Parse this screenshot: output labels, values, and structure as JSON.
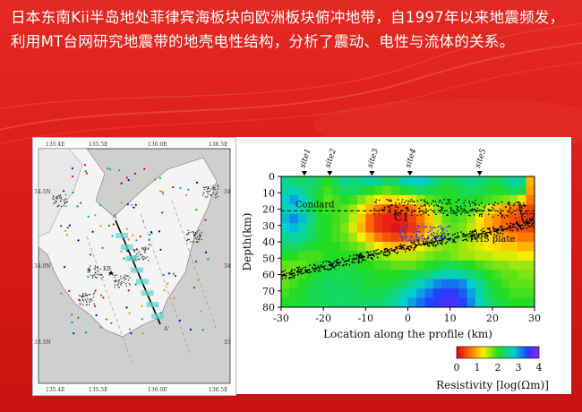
{
  "slide": {
    "text": "日本东南Kii半岛地处菲律宾海板块向欧洲板块俯冲地带，自1997年以来地震频发，利用MT台网研究地震带的地壳电性结构，分析了震动、电性与流体的关系。",
    "colors": {
      "background": "#d81a16",
      "text": "#ffffff"
    }
  },
  "map": {
    "top_ticks": [
      "135.4E",
      "135.5E",
      "136.0E",
      "136.5E"
    ],
    "bottom_ticks": [
      "135.4E",
      "135.5E",
      "136.0E",
      "136.5E"
    ],
    "left_ticks": [
      "34.5N",
      "34.0N",
      "33.5N"
    ],
    "right_ticks": [
      "34",
      "34",
      "33"
    ],
    "profile_start": "A",
    "profile_end": "A'",
    "station_label": "KB"
  },
  "chart_data": {
    "type": "heatmap",
    "xlabel": "Location along the profile (km)",
    "ylabel": "Depth(km)",
    "xlim": [
      -30,
      30
    ],
    "ylim": [
      80,
      0
    ],
    "x_ticks": [
      -30,
      -20,
      -10,
      0,
      10,
      20,
      30
    ],
    "y_ticks": [
      0,
      10,
      20,
      30,
      40,
      50,
      60,
      70,
      80
    ],
    "sites": [
      {
        "name": "site1",
        "x": -24.5
      },
      {
        "name": "site2",
        "x": -18.5
      },
      {
        "name": "site3",
        "x": -8.5
      },
      {
        "name": "site4",
        "x": 0.5
      },
      {
        "name": "site5",
        "x": 17
      }
    ],
    "annotations": [
      {
        "text": "Condard",
        "x": -22,
        "y": 19
      },
      {
        "text": "C1",
        "x": -1.5,
        "y": 27
      },
      {
        "text": "C2",
        "x": 28.5,
        "y": 27
      },
      {
        "text": "PHS plate",
        "x": 20,
        "y": 40
      }
    ],
    "conrad_depth": 21,
    "phs_plate_line": [
      [
        -30,
        61
      ],
      [
        -20,
        55
      ],
      [
        -10,
        49
      ],
      [
        0,
        43
      ],
      [
        10,
        38
      ],
      [
        20,
        34
      ],
      [
        30,
        28
      ]
    ],
    "colorbar": {
      "label": "Resistivity [log(Ωm)]",
      "ticks": [
        0,
        1,
        2,
        3,
        4
      ],
      "range": [
        0,
        4
      ]
    },
    "grid": [
      [
        2.5,
        2.4,
        2.3,
        2.4,
        2.2,
        2.0,
        2.3,
        2.5,
        2.4,
        2.5,
        2.6,
        2.5,
        2.3,
        2.4,
        2.6,
        2.7,
        2.8,
        2.6,
        2.4,
        2.2,
        2.3,
        2.4,
        2.5,
        2.4,
        2.3,
        2.2,
        2.4,
        2.6,
        2.5,
        1.0
      ],
      [
        2.6,
        2.7,
        2.5,
        2.3,
        2.1,
        1.9,
        2.1,
        2.3,
        2.3,
        2.2,
        2.0,
        1.9,
        1.8,
        1.9,
        2.0,
        2.2,
        2.3,
        2.2,
        2.1,
        2.0,
        2.1,
        2.2,
        2.3,
        2.2,
        2.1,
        2.0,
        2.1,
        2.3,
        2.2,
        0.9
      ],
      [
        2.8,
        3.0,
        2.8,
        2.4,
        2.0,
        1.8,
        1.9,
        2.0,
        1.9,
        1.7,
        1.5,
        1.3,
        1.2,
        1.2,
        1.3,
        1.4,
        1.6,
        1.8,
        1.9,
        2.0,
        2.0,
        2.1,
        2.1,
        2.0,
        1.9,
        1.8,
        1.7,
        1.6,
        1.2,
        0.7
      ],
      [
        2.7,
        2.8,
        2.6,
        2.3,
        2.0,
        1.9,
        1.9,
        1.8,
        1.6,
        1.3,
        1.0,
        0.7,
        0.5,
        0.4,
        0.5,
        0.7,
        1.0,
        1.4,
        1.7,
        1.9,
        2.0,
        2.0,
        1.9,
        1.7,
        1.4,
        1.1,
        0.9,
        0.7,
        0.5,
        0.4
      ],
      [
        2.9,
        3.1,
        2.9,
        2.5,
        2.1,
        2.0,
        1.9,
        1.8,
        1.5,
        1.1,
        0.6,
        0.3,
        0.2,
        0.2,
        0.2,
        0.4,
        0.7,
        1.1,
        1.5,
        1.8,
        1.9,
        1.8,
        1.6,
        1.3,
        1.0,
        0.8,
        0.6,
        0.5,
        0.4,
        0.3
      ],
      [
        2.8,
        2.9,
        2.7,
        2.4,
        2.1,
        2.0,
        1.9,
        1.7,
        1.4,
        1.0,
        0.6,
        0.3,
        0.2,
        0.1,
        0.2,
        0.3,
        0.6,
        1.0,
        1.4,
        1.7,
        1.8,
        1.7,
        1.5,
        1.2,
        1.0,
        0.8,
        0.6,
        0.5,
        0.5,
        0.4
      ],
      [
        2.5,
        2.6,
        2.5,
        2.3,
        2.1,
        2.0,
        1.9,
        1.8,
        1.6,
        1.3,
        1.0,
        0.7,
        0.5,
        0.4,
        0.5,
        0.6,
        0.9,
        1.2,
        1.5,
        1.7,
        1.8,
        1.7,
        1.6,
        1.4,
        1.2,
        1.0,
        0.9,
        0.8,
        0.7,
        0.7
      ],
      [
        2.3,
        2.3,
        2.2,
        2.1,
        2.0,
        2.0,
        2.0,
        1.9,
        1.8,
        1.7,
        1.5,
        1.3,
        1.1,
        1.0,
        1.0,
        1.1,
        1.3,
        1.5,
        1.6,
        1.7,
        1.7,
        1.6,
        1.5,
        1.4,
        1.3,
        1.2,
        1.1,
        1.1,
        1.0,
        1.0
      ],
      [
        2.0,
        2.0,
        1.9,
        1.9,
        1.9,
        2.0,
        2.0,
        2.0,
        2.0,
        1.9,
        1.8,
        1.7,
        1.6,
        1.5,
        1.5,
        1.5,
        1.6,
        1.7,
        1.8,
        1.8,
        1.7,
        1.6,
        1.6,
        1.5,
        1.5,
        1.4,
        1.4,
        1.4,
        1.3,
        1.3
      ],
      [
        1.8,
        1.8,
        1.8,
        1.9,
        2.0,
        2.1,
        2.1,
        2.1,
        2.1,
        2.0,
        2.0,
        1.9,
        1.9,
        1.8,
        1.8,
        1.8,
        1.9,
        2.0,
        2.1,
        2.2,
        2.2,
        2.1,
        2.0,
        1.9,
        1.8,
        1.7,
        1.7,
        1.6,
        1.6,
        1.6
      ],
      [
        1.7,
        1.8,
        1.9,
        2.0,
        2.1,
        2.2,
        2.2,
        2.2,
        2.2,
        2.1,
        2.1,
        2.0,
        2.0,
        2.0,
        2.1,
        2.2,
        2.3,
        2.4,
        2.6,
        2.7,
        2.7,
        2.6,
        2.4,
        2.2,
        2.0,
        1.9,
        1.8,
        1.8,
        1.7,
        1.7
      ],
      [
        1.8,
        1.9,
        2.0,
        2.1,
        2.2,
        2.3,
        2.3,
        2.3,
        2.2,
        2.2,
        2.1,
        2.1,
        2.1,
        2.2,
        2.3,
        2.5,
        2.7,
        2.9,
        3.1,
        3.2,
        3.2,
        3.1,
        2.8,
        2.5,
        2.2,
        2.0,
        1.9,
        1.8,
        1.8,
        1.8
      ],
      [
        1.9,
        2.0,
        2.1,
        2.2,
        2.3,
        2.3,
        2.3,
        2.3,
        2.3,
        2.2,
        2.2,
        2.2,
        2.3,
        2.4,
        2.6,
        2.8,
        3.0,
        3.2,
        3.4,
        3.5,
        3.5,
        3.3,
        3.0,
        2.6,
        2.3,
        2.1,
        2.0,
        1.9,
        1.9,
        1.9
      ],
      [
        2.0,
        2.1,
        2.1,
        2.2,
        2.2,
        2.3,
        2.3,
        2.3,
        2.3,
        2.3,
        2.3,
        2.3,
        2.4,
        2.6,
        2.8,
        3.0,
        3.2,
        3.4,
        3.5,
        3.6,
        3.6,
        3.4,
        3.1,
        2.7,
        2.4,
        2.2,
        2.1,
        2.0,
        2.0,
        2.0
      ]
    ]
  }
}
